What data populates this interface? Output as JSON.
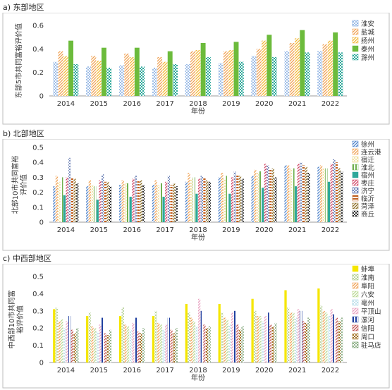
{
  "chart_data": [
    {
      "type": "bar",
      "panel_label": "a) 东部地区",
      "categories": [
        "2014",
        "2015",
        "2016",
        "2017",
        "2018",
        "2019",
        "2020",
        "2021",
        "2022"
      ],
      "xlabel": "年份",
      "ylabel": "东部5市共同富裕评价值",
      "ylim": [
        0,
        0.6
      ],
      "yticks": [
        "0",
        "0.2",
        "0.4",
        "0.6"
      ],
      "grid": false,
      "legend_position": "right",
      "series": [
        {
          "name": "淮安",
          "color": "#5b8fd6",
          "pattern": "dots",
          "values": [
            0.29,
            0.25,
            0.26,
            0.24,
            0.27,
            0.28,
            0.34,
            0.38,
            0.38
          ]
        },
        {
          "name": "盐城",
          "color": "#f0a050",
          "pattern": "hatch",
          "values": [
            0.38,
            0.34,
            0.36,
            0.33,
            0.38,
            0.38,
            0.4,
            0.45,
            0.44
          ]
        },
        {
          "name": "扬州",
          "color": "#f2b632",
          "pattern": "hatch",
          "values": [
            0.34,
            0.3,
            0.33,
            0.29,
            0.39,
            0.39,
            0.47,
            0.49,
            0.47
          ]
        },
        {
          "name": "泰州",
          "color": "#6cbb3c",
          "pattern": "solid",
          "values": [
            0.47,
            0.41,
            0.41,
            0.38,
            0.45,
            0.46,
            0.52,
            0.56,
            0.54
          ]
        },
        {
          "name": "滁州",
          "color": "#2ea89a",
          "pattern": "checker",
          "values": [
            0.27,
            0.24,
            0.25,
            0.27,
            0.33,
            0.29,
            0.33,
            0.37,
            0.37
          ]
        }
      ]
    },
    {
      "type": "bar",
      "panel_label": "b) 北部地区",
      "categories": [
        "2014",
        "2015",
        "2016",
        "2017",
        "2018",
        "2019",
        "2020",
        "2021",
        "2022"
      ],
      "xlabel": "年份",
      "ylabel": "北部10市共同富裕评价值",
      "ylim": [
        0,
        0.5
      ],
      "yticks": [
        "0",
        "0.1",
        "0.2",
        "0.3",
        "0.4",
        "0.5"
      ],
      "grid": false,
      "legend_position": "right",
      "series": [
        {
          "name": "徐州",
          "color": "#4a7fc9",
          "pattern": "hatch",
          "values": [
            0.24,
            0.24,
            0.25,
            0.25,
            0.27,
            0.3,
            0.31,
            0.38,
            0.37
          ]
        },
        {
          "name": "连云港",
          "color": "#f0a050",
          "pattern": "hatch",
          "values": [
            0.31,
            0.28,
            0.28,
            0.28,
            0.33,
            0.33,
            0.35,
            0.38,
            0.38
          ]
        },
        {
          "name": "宿迁",
          "color": "#e8d070",
          "pattern": "dots",
          "values": [
            0.27,
            0.25,
            0.26,
            0.25,
            0.29,
            0.29,
            0.33,
            0.36,
            0.36
          ]
        },
        {
          "name": "淮北",
          "color": "#70b050",
          "pattern": "vlines",
          "values": [
            0.3,
            0.24,
            0.26,
            0.26,
            0.3,
            0.31,
            0.34,
            0.36,
            0.36
          ]
        },
        {
          "name": "宿州",
          "color": "#2ea89a",
          "pattern": "solid",
          "values": [
            0.18,
            0.15,
            0.17,
            0.17,
            0.19,
            0.19,
            0.23,
            0.24,
            0.27
          ]
        },
        {
          "name": "枣庄",
          "color": "#d04060",
          "pattern": "hatch",
          "values": [
            0.3,
            0.28,
            0.29,
            0.27,
            0.29,
            0.3,
            0.39,
            0.39,
            0.39
          ]
        },
        {
          "name": "济宁",
          "color": "#1f3f8f",
          "pattern": "dots",
          "values": [
            0.43,
            0.32,
            0.31,
            0.31,
            0.31,
            0.34,
            0.38,
            0.4,
            0.42
          ]
        },
        {
          "name": "临沂",
          "color": "#c06020",
          "pattern": "hlines",
          "values": [
            0.3,
            0.27,
            0.28,
            0.25,
            0.3,
            0.32,
            0.35,
            0.38,
            0.4
          ]
        },
        {
          "name": "菏泽",
          "color": "#8a6a20",
          "pattern": "hatch",
          "values": [
            0.29,
            0.27,
            0.28,
            0.26,
            0.28,
            0.31,
            0.36,
            0.37,
            0.36
          ]
        },
        {
          "name": "商丘",
          "color": "#333333",
          "pattern": "checker",
          "values": [
            0.26,
            0.24,
            0.25,
            0.24,
            0.27,
            0.29,
            0.3,
            0.33,
            0.34
          ]
        }
      ]
    },
    {
      "type": "bar",
      "panel_label": "c) 中西部地区",
      "categories": [
        "2014",
        "2015",
        "2016",
        "2017",
        "2018",
        "2019",
        "2020",
        "2021",
        "2022"
      ],
      "xlabel": "年份",
      "ylabel": "中西部10市共同富裕评价值",
      "ylim": [
        0,
        0.5
      ],
      "yticks": [
        "0",
        "0.1",
        "0.2",
        "0.3",
        "0.4",
        "0.5"
      ],
      "grid": false,
      "legend_position": "right",
      "series": [
        {
          "name": "蚌埠",
          "color": "#f5e600",
          "pattern": "solid",
          "values": [
            0.31,
            0.27,
            0.27,
            0.27,
            0.34,
            0.34,
            0.37,
            0.42,
            0.43
          ]
        },
        {
          "name": "淮南",
          "color": "#8fb860",
          "pattern": "dots",
          "values": [
            0.32,
            0.29,
            0.32,
            0.3,
            0.29,
            0.29,
            0.3,
            0.32,
            0.33
          ]
        },
        {
          "name": "阜阳",
          "color": "#f0a050",
          "pattern": "hatch",
          "values": [
            0.24,
            0.21,
            0.22,
            0.23,
            0.26,
            0.26,
            0.27,
            0.29,
            0.3
          ]
        },
        {
          "name": "六安",
          "color": "#b8d890",
          "pattern": "hatch",
          "values": [
            0.25,
            0.2,
            0.21,
            0.22,
            0.24,
            0.25,
            0.27,
            0.29,
            0.29
          ]
        },
        {
          "name": "亳州",
          "color": "#9ad0e0",
          "pattern": "dots",
          "values": [
            0.2,
            0.18,
            0.19,
            0.19,
            0.21,
            0.22,
            0.24,
            0.26,
            0.27
          ]
        },
        {
          "name": "平顶山",
          "color": "#e8a0c0",
          "pattern": "hatch",
          "values": [
            0.24,
            0.22,
            0.23,
            0.22,
            0.37,
            0.29,
            0.27,
            0.31,
            0.31
          ]
        },
        {
          "name": "漯河",
          "color": "#2040a0",
          "pattern": "vlines",
          "values": [
            0.27,
            0.26,
            0.26,
            0.26,
            0.3,
            0.3,
            0.29,
            0.3,
            0.28
          ]
        },
        {
          "name": "信阳",
          "color": "#c05050",
          "pattern": "hatch",
          "values": [
            0.19,
            0.17,
            0.18,
            0.19,
            0.22,
            0.22,
            0.22,
            0.24,
            0.26
          ]
        },
        {
          "name": "周口",
          "color": "#a07020",
          "pattern": "checker",
          "values": [
            0.17,
            0.16,
            0.17,
            0.17,
            0.2,
            0.19,
            0.21,
            0.23,
            0.24
          ]
        },
        {
          "name": "驻马店",
          "color": "#4a8040",
          "pattern": "dots",
          "values": [
            0.2,
            0.19,
            0.2,
            0.2,
            0.21,
            0.21,
            0.23,
            0.26,
            0.26
          ]
        }
      ]
    }
  ]
}
